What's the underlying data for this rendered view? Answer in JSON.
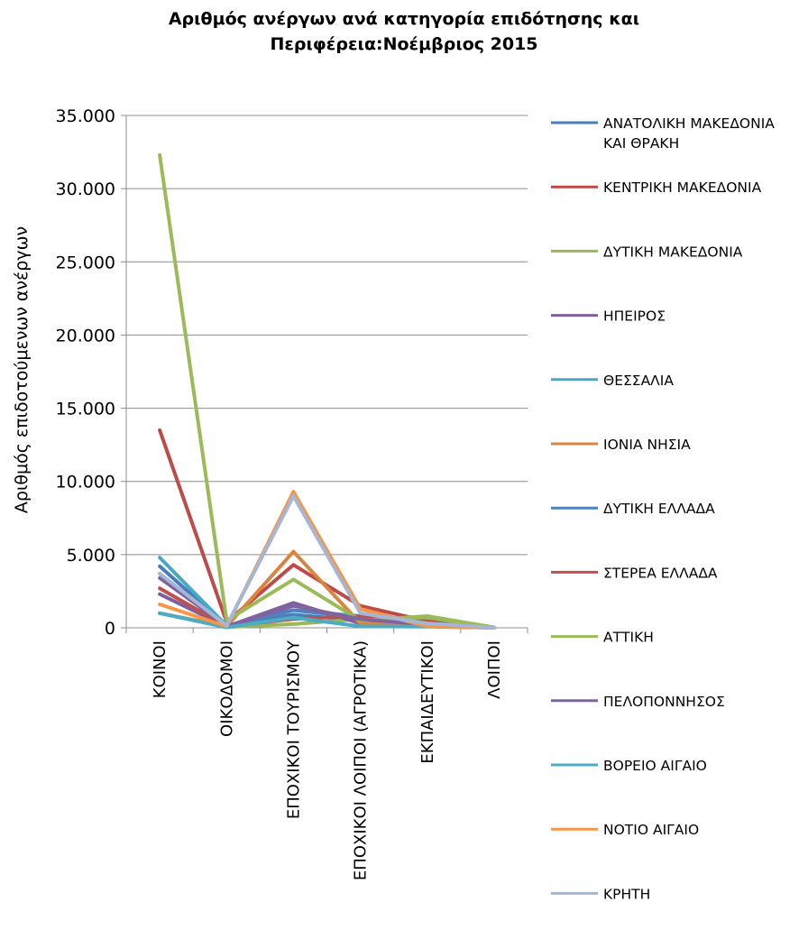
{
  "chart_data": {
    "type": "line",
    "title_line1": "Αριθμός ανέργων ανά κατηγορία επιδότησης και",
    "title_line2": "Περιφέρεια:Νοέμβριος 2015",
    "ylabel": "Αριθμός επιδοτούμενων ανέργων",
    "xlabel": "",
    "ylim": [
      0,
      35000
    ],
    "yticks": [
      0,
      5000,
      10000,
      15000,
      20000,
      25000,
      30000,
      35000
    ],
    "ytick_labels": [
      "0",
      "5.000",
      "10.000",
      "15.000",
      "20.000",
      "25.000",
      "30.000",
      "35.000"
    ],
    "grid": "horizontal",
    "legend_position": "right",
    "categories": [
      "ΚΟΙΝΟΙ",
      "ΟΙΚΟΔΟΜΟΙ",
      "ΕΠΟΧΙΚΟΙ ΤΟΥΡΙΣΜΟΥ",
      "ΕΠΟΧΙΚΟΙ ΛΟΙΠΟΙ (ΑΓΡΟΤΙΚΑ)",
      "ΕΚΠΑΙΔΕΥΤΙΚΟΙ",
      "ΛΟΙΠΟΙ"
    ],
    "series": [
      {
        "name": "ΑΝΑΤΟΛΙΚΗ ΜΑΚΕΔΟΝΙΑ ΚΑΙ ΘΡΑΚΗ",
        "legend_lines": [
          "ΑΝΑΤΟΛΙΚΗ ΜΑΚΕΔΟΝΙΑ",
          "ΚΑΙ ΘΡΑΚΗ"
        ],
        "color": "#4A7EBB",
        "values": [
          4200,
          150,
          900,
          500,
          250,
          10
        ]
      },
      {
        "name": "ΚΕΝΤΡΙΚΗ ΜΑΚΕΔΟΝΙΑ",
        "legend_lines": [
          "ΚΕΝΤΡΙΚΗ ΜΑΚΕΔΟΝΙΑ"
        ],
        "color": "#BE4B48",
        "values": [
          13500,
          400,
          4300,
          1500,
          450,
          20
        ]
      },
      {
        "name": "ΔΥΤΙΚΗ ΜΑΚΕΔΟΝΙΑ",
        "legend_lines": [
          "ΔΥΤΙΚΗ ΜΑΚΕΔΟΝΙΑ"
        ],
        "color": "#98B954",
        "values": [
          1000,
          50,
          250,
          600,
          700,
          5
        ]
      },
      {
        "name": "ΗΠΕΙΡΟΣ",
        "legend_lines": [
          "ΗΠΕΙΡΟΣ"
        ],
        "color": "#7D60A0",
        "values": [
          2300,
          80,
          1700,
          300,
          150,
          5
        ]
      },
      {
        "name": "ΘΕΣΣΑΛΙΑ",
        "legend_lines": [
          "ΘΕΣΣΑΛΙΑ"
        ],
        "color": "#46AAC5",
        "values": [
          4800,
          150,
          1200,
          800,
          300,
          10
        ]
      },
      {
        "name": "ΙΟΝΙΑ ΝΗΣΙΑ",
        "legend_lines": [
          "ΙΟΝΙΑ ΝΗΣΙΑ"
        ],
        "color": "#DB843D",
        "values": [
          1000,
          100,
          5200,
          300,
          100,
          5
        ]
      },
      {
        "name": "ΔΥΤΙΚΗ ΕΛΛΑΔΑ",
        "legend_lines": [
          "ΔΥΤΙΚΗ ΕΛΛΑΔΑ"
        ],
        "color": "#4F81BD",
        "values": [
          3700,
          120,
          1200,
          700,
          300,
          10
        ]
      },
      {
        "name": "ΣΤΕΡΕΑ ΕΛΛΑΔΑ",
        "legend_lines": [
          "ΣΤΕΡΕΑ ΕΛΛΑΔΑ"
        ],
        "color": "#C0504D",
        "values": [
          2700,
          100,
          600,
          800,
          250,
          5
        ]
      },
      {
        "name": "ΑΤΤΙΚΗ",
        "legend_lines": [
          "ΑΤΤΙΚΗ"
        ],
        "color": "#9BBB59",
        "values": [
          32300,
          500,
          3300,
          500,
          800,
          30
        ]
      },
      {
        "name": "ΠΕΛΟΠΟΝΝΗΣΟΣ",
        "legend_lines": [
          "ΠΕΛΟΠΟΝΝΗΣΟΣ"
        ],
        "color": "#8064A2",
        "values": [
          3400,
          120,
          1500,
          600,
          200,
          10
        ]
      },
      {
        "name": "ΒΟΡΕΙΟ ΑΙΓΑΙΟ",
        "legend_lines": [
          "ΒΟΡΕΙΟ ΑΙΓΑΙΟ"
        ],
        "color": "#4BACC6",
        "values": [
          1000,
          30,
          700,
          100,
          80,
          5
        ]
      },
      {
        "name": "ΝΟΤΙΟ ΑΙΓΑΙΟ",
        "legend_lines": [
          "ΝΟΤΙΟ ΑΙΓΑΙΟ"
        ],
        "color": "#F79646",
        "values": [
          1600,
          100,
          9300,
          1300,
          100,
          5
        ]
      },
      {
        "name": "ΚΡΗΤΗ",
        "legend_lines": [
          "ΚΡΗΤΗ"
        ],
        "color": "#A5B6D6",
        "values": [
          3700,
          150,
          9000,
          1000,
          300,
          20
        ]
      }
    ]
  }
}
